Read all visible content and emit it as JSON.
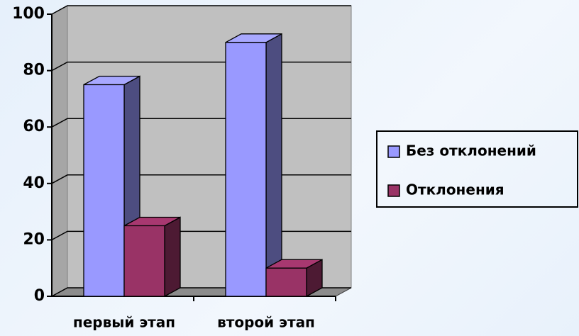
{
  "chart_data": {
    "type": "bar3d",
    "categories": [
      "первый этап",
      "второй этап"
    ],
    "series": [
      {
        "name": "Без отклонений",
        "color": "#9999ff",
        "values": [
          75,
          90
        ]
      },
      {
        "name": "Отклонения",
        "color": "#993366",
        "values": [
          25,
          10
        ]
      }
    ],
    "ylim": [
      0,
      100
    ],
    "yticks": [
      0,
      20,
      40,
      60,
      80,
      100
    ],
    "grid": true,
    "legend": "right"
  }
}
